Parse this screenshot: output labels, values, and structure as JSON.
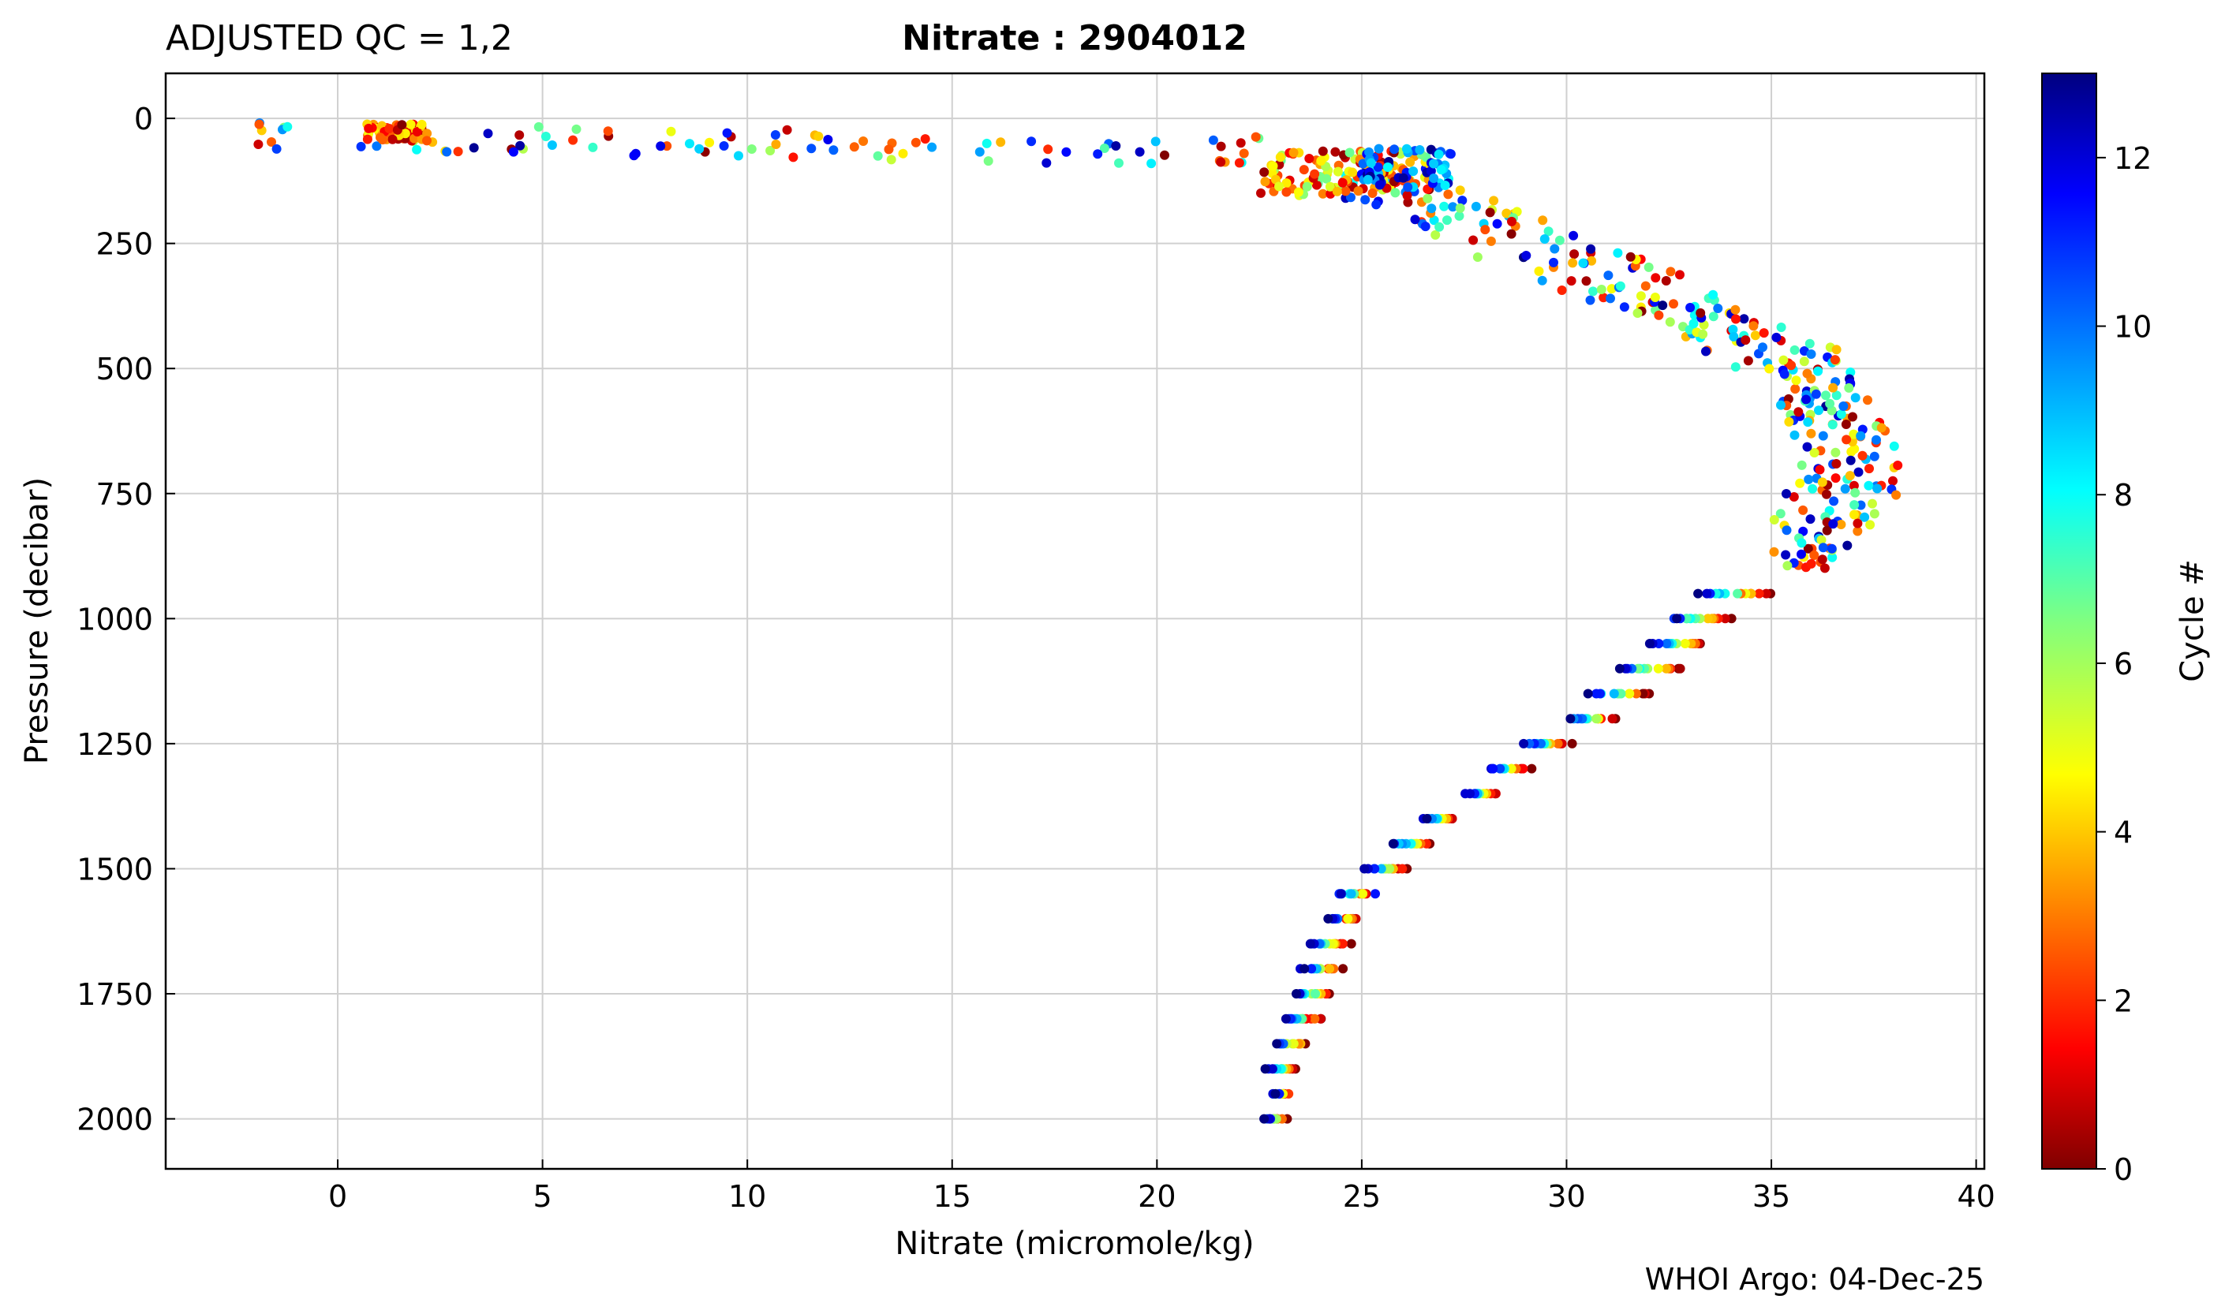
{
  "chart_data": {
    "type": "scatter",
    "title_left": "ADJUSTED QC = 1,2",
    "title_center": "Nitrate : 2904012",
    "xlabel": "Nitrate  (micromole/kg)",
    "ylabel": "Pressure  (decibar)",
    "footer": "WHOI Argo: 04-Dec-25",
    "xlim": [
      -4.2,
      40.2
    ],
    "ylim": [
      2100,
      -90
    ],
    "x_ticks": [
      0,
      5,
      10,
      15,
      20,
      25,
      30,
      35,
      40
    ],
    "y_ticks": [
      0,
      250,
      500,
      750,
      1000,
      1250,
      1500,
      1750,
      2000
    ],
    "grid": true,
    "colorbar": {
      "label": "Cycle #",
      "range": [
        0,
        13
      ],
      "ticks": [
        0,
        2,
        4,
        6,
        8,
        10,
        12
      ],
      "colormap": "jet"
    },
    "deep_profile": {
      "pressures": [
        950,
        1000,
        1050,
        1100,
        1150,
        1200,
        1250,
        1300,
        1350,
        1400,
        1450,
        1500,
        1550,
        1600,
        1650,
        1700,
        1750,
        1800,
        1850,
        1900,
        1950,
        2000
      ],
      "nitrate_min": [
        33.2,
        32.5,
        31.9,
        31.2,
        30.5,
        29.9,
        28.9,
        28.0,
        27.4,
        26.4,
        25.7,
        25.0,
        24.3,
        24.0,
        23.6,
        23.4,
        23.2,
        23.0,
        22.8,
        22.6,
        22.7,
        22.6
      ],
      "nitrate_max": [
        35.0,
        34.0,
        33.4,
        32.8,
        32.0,
        31.1,
        30.0,
        29.0,
        28.2,
        27.2,
        26.7,
        26.0,
        25.2,
        24.8,
        24.6,
        24.4,
        24.2,
        24.0,
        23.6,
        23.3,
        23.1,
        23.0
      ]
    },
    "intermediate_profile": {
      "pressures": [
        100,
        150,
        200,
        250,
        300,
        350,
        400,
        450,
        500,
        550,
        600,
        650,
        700,
        750,
        800,
        850,
        900
      ],
      "nitrate_min": [
        23.5,
        24.0,
        25.6,
        26.5,
        28.0,
        30.0,
        32.0,
        33.0,
        34.0,
        35.0,
        35.4,
        35.6,
        35.6,
        35.3,
        35.0,
        35.0,
        35.0
      ],
      "nitrate_max": [
        27.0,
        28.0,
        29.5,
        31.0,
        32.5,
        33.8,
        34.6,
        36.5,
        37.0,
        37.3,
        37.7,
        38.0,
        38.2,
        38.2,
        37.6,
        37.0,
        36.3
      ]
    },
    "surface_profile": {
      "pressure_range": [
        10,
        70
      ],
      "nitrate_range": [
        -2.3,
        22.5
      ],
      "dense_cluster": [
        0.7,
        2.2
      ]
    }
  }
}
